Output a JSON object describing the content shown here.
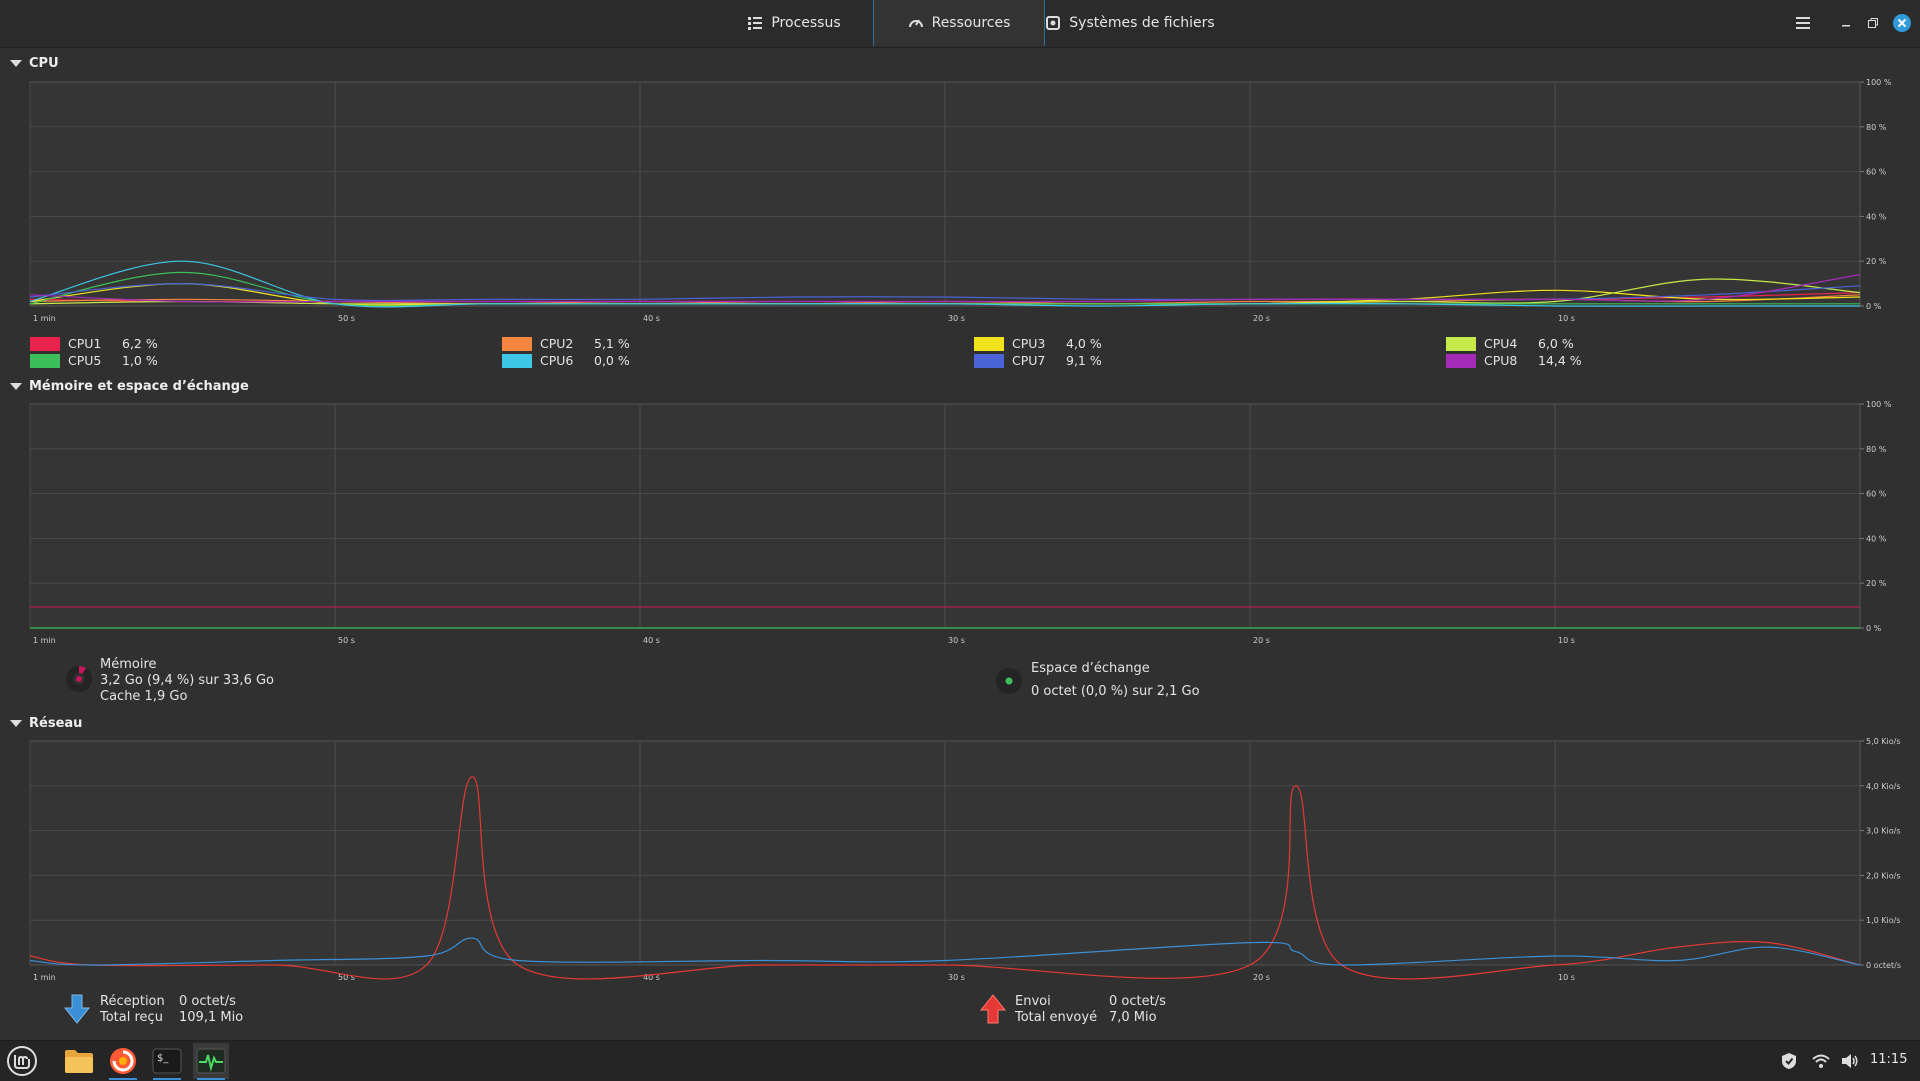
{
  "tabs": [
    {
      "label": "Processus",
      "icon": "list-icon"
    },
    {
      "label": "Ressources",
      "icon": "gauge-icon"
    },
    {
      "label": "Systèmes de fichiers",
      "icon": "disk-icon"
    }
  ],
  "cpu": {
    "title": "CPU",
    "legend": [
      {
        "name": "CPU1",
        "value": "6,2 %",
        "color": "#e8234d"
      },
      {
        "name": "CPU2",
        "value": "5,1 %",
        "color": "#f5853f"
      },
      {
        "name": "CPU3",
        "value": "4,0 %",
        "color": "#f2e21c"
      },
      {
        "name": "CPU4",
        "value": "6,0 %",
        "color": "#c5e84a"
      },
      {
        "name": "CPU5",
        "value": "1,0 %",
        "color": "#3cbf5a"
      },
      {
        "name": "CPU6",
        "value": "0,0 %",
        "color": "#3ec6e6"
      },
      {
        "name": "CPU7",
        "value": "9,1 %",
        "color": "#4a63d6"
      },
      {
        "name": "CPU8",
        "value": "14,4 %",
        "color": "#a32bb8"
      }
    ]
  },
  "memory": {
    "title": "Mémoire et espace d’échange",
    "mem_label": "Mémoire",
    "mem_value": "3,2 Go (9,4 %) sur 33,6 Go",
    "mem_cache": "Cache 1,9 Go",
    "swap_label": "Espace d’échange",
    "swap_value": "0 octet (0,0 %) sur 2,1 Go",
    "mem_color": "#c2185b",
    "swap_color": "#3cbf5a"
  },
  "network": {
    "title": "Réseau",
    "rx_label": "Réception",
    "rx_value": "0 octet/s",
    "rx_total_label": "Total reçu",
    "rx_total_value": "109,1 Mio",
    "tx_label": "Envoi",
    "tx_value": "0 octet/s",
    "tx_total_label": "Total envoyé",
    "tx_total_value": "7,0 Mio",
    "rx_color": "#3a8fd6",
    "tx_color": "#e53935"
  },
  "x_ticks": [
    "1 min",
    "50 s",
    "40 s",
    "30 s",
    "20 s",
    "10 s"
  ],
  "pct_ticks": [
    "100 %",
    "80 %",
    "60 %",
    "40 %",
    "20 %",
    "0 %"
  ],
  "net_ticks": [
    "5,0 Kio/s",
    "4,0 Kio/s",
    "3,0 Kio/s",
    "2,0 Kio/s",
    "1,0 Kio/s",
    "0 octet/s"
  ],
  "chart_data": [
    {
      "type": "line",
      "title": "CPU",
      "x": [
        60,
        55,
        50,
        45,
        40,
        35,
        30,
        25,
        20,
        15,
        10,
        5,
        0
      ],
      "xlabel": "",
      "ylabel": "",
      "ylim": [
        0,
        100
      ],
      "series": [
        {
          "name": "CPU1",
          "values": [
            3,
            2,
            2,
            2,
            2,
            2,
            2,
            2,
            3,
            3,
            3,
            4,
            6
          ]
        },
        {
          "name": "CPU2",
          "values": [
            2,
            3,
            2,
            1,
            2,
            1,
            2,
            1,
            2,
            2,
            3,
            2,
            5
          ]
        },
        {
          "name": "CPU3",
          "values": [
            2,
            10,
            1,
            1,
            1,
            1,
            1,
            1,
            1,
            3,
            7,
            3,
            4
          ]
        },
        {
          "name": "CPU4",
          "values": [
            1,
            2,
            1,
            1,
            1,
            1,
            1,
            1,
            1,
            2,
            2,
            12,
            6
          ]
        },
        {
          "name": "CPU5",
          "values": [
            1,
            15,
            1,
            1,
            1,
            1,
            1,
            1,
            1,
            1,
            1,
            1,
            1
          ]
        },
        {
          "name": "CPU6",
          "values": [
            2,
            20,
            1,
            1,
            1,
            1,
            1,
            0,
            1,
            1,
            0,
            0,
            0
          ]
        },
        {
          "name": "CPU7",
          "values": [
            4,
            10,
            3,
            3,
            3,
            4,
            4,
            3,
            3,
            3,
            3,
            5,
            9
          ]
        },
        {
          "name": "CPU8",
          "values": [
            5,
            2,
            2,
            2,
            2,
            2,
            2,
            2,
            3,
            3,
            3,
            3,
            14
          ]
        }
      ]
    },
    {
      "type": "line",
      "title": "Mémoire et espace d’échange",
      "x": [
        60,
        0
      ],
      "xlabel": "",
      "ylabel": "",
      "ylim": [
        0,
        100
      ],
      "series": [
        {
          "name": "Mémoire",
          "values": [
            9.4,
            9.4
          ]
        },
        {
          "name": "Espace d’échange",
          "values": [
            0,
            0
          ]
        }
      ]
    },
    {
      "type": "line",
      "title": "Réseau",
      "x": [
        60,
        58,
        52,
        47,
        45.5,
        44,
        36,
        30,
        20,
        18.5,
        17,
        10,
        6,
        3,
        0
      ],
      "xlabel": "",
      "ylabel": "",
      "ylim": [
        0,
        5
      ],
      "series": [
        {
          "name": "Envoi",
          "values": [
            0.2,
            0,
            0,
            0,
            4.2,
            0,
            0,
            0,
            0,
            4.0,
            0,
            0,
            0.4,
            0.5,
            0
          ]
        },
        {
          "name": "Réception",
          "values": [
            0.1,
            0,
            0.1,
            0.2,
            0.6,
            0.1,
            0.1,
            0.1,
            0.5,
            0.3,
            0,
            0.2,
            0.1,
            0.4,
            0
          ]
        }
      ]
    }
  ],
  "taskbar": {
    "clock": "11:15"
  }
}
